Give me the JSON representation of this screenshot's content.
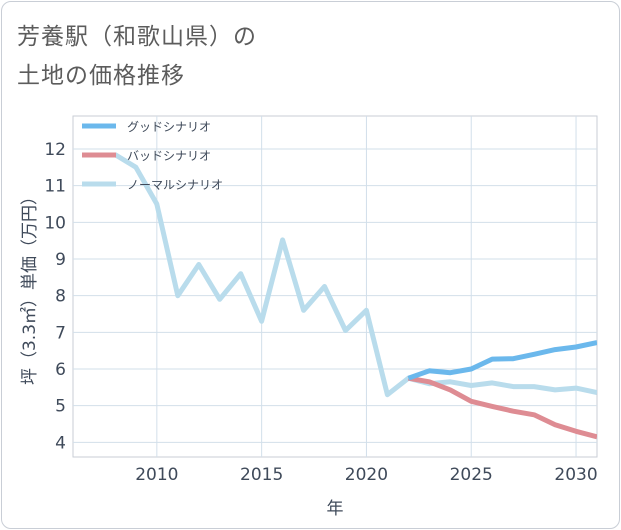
{
  "page": {
    "title_line1": "芳養駅（和歌山県）の",
    "title_line2": "土地の価格推移"
  },
  "chart_data": {
    "type": "line",
    "title": "芳養駅（和歌山県）の土地の価格推移",
    "xlabel": "年",
    "ylabel": "坪（3.3㎡）単価（万円）",
    "xlim": [
      2006,
      2031
    ],
    "ylim": [
      3.6,
      12.9
    ],
    "xticks": [
      2010,
      2015,
      2020,
      2025,
      2030
    ],
    "yticks": [
      4,
      5,
      6,
      7,
      8,
      9,
      10,
      11,
      12
    ],
    "grid": true,
    "legend_position": "top-left",
    "series": [
      {
        "name": "グッドシナリオ",
        "color": "#6bb8ec",
        "x": [
          2022,
          2023,
          2024,
          2025,
          2026,
          2027,
          2028,
          2029,
          2030,
          2031
        ],
        "values": [
          5.75,
          5.95,
          5.9,
          6.0,
          6.27,
          6.28,
          6.4,
          6.53,
          6.6,
          6.72
        ]
      },
      {
        "name": "バッドシナリオ",
        "color": "#de8c93",
        "x": [
          2022,
          2023,
          2024,
          2025,
          2026,
          2027,
          2028,
          2029,
          2030,
          2031
        ],
        "values": [
          5.75,
          5.65,
          5.43,
          5.12,
          4.98,
          4.85,
          4.75,
          4.48,
          4.3,
          4.15
        ]
      },
      {
        "name": "ノーマルシナリオ",
        "color": "#b9dcec",
        "x": [
          2008,
          2009,
          2010,
          2011,
          2012,
          2013,
          2014,
          2015,
          2016,
          2017,
          2018,
          2019,
          2020,
          2021,
          2022,
          2023,
          2024,
          2025,
          2026,
          2027,
          2028,
          2029,
          2030,
          2031
        ],
        "values": [
          11.85,
          11.5,
          10.5,
          8.0,
          8.85,
          7.9,
          8.6,
          7.3,
          9.52,
          7.6,
          8.25,
          7.05,
          7.6,
          5.3,
          5.75,
          5.6,
          5.65,
          5.55,
          5.62,
          5.52,
          5.52,
          5.43,
          5.48,
          5.36
        ]
      }
    ]
  }
}
